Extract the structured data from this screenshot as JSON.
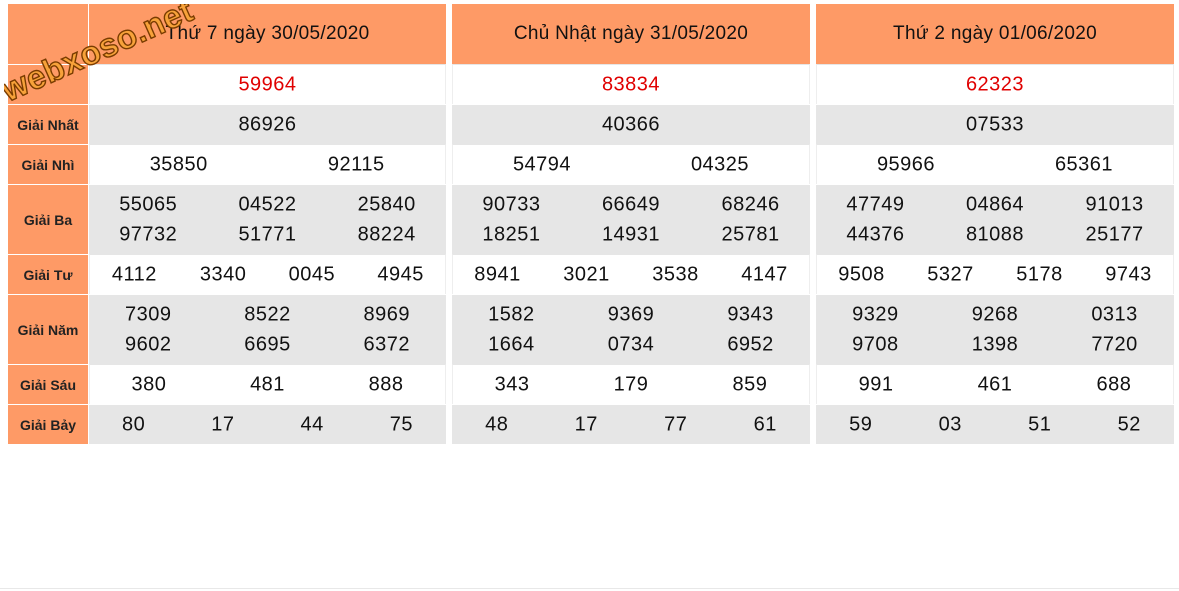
{
  "watermark": "webxoso.net",
  "labels": [
    "Giải Nhất",
    "Giải Nhì",
    "Giải Ba",
    "Giải Tư",
    "Giải Năm",
    "Giải Sáu",
    "Giải Bảy"
  ],
  "columns": [
    {
      "title": "Thứ 7 ngày 30/05/2020",
      "special": "59964",
      "first": "86926",
      "second": [
        "35850",
        "92115"
      ],
      "third": [
        "55065",
        "04522",
        "25840",
        "97732",
        "51771",
        "88224"
      ],
      "fourth": [
        "4112",
        "3340",
        "0045",
        "4945"
      ],
      "fifth": [
        "7309",
        "8522",
        "8969",
        "9602",
        "6695",
        "6372"
      ],
      "sixth": [
        "380",
        "481",
        "888"
      ],
      "seventh": [
        "80",
        "17",
        "44",
        "75"
      ]
    },
    {
      "title": "Chủ Nhật ngày 31/05/2020",
      "special": "83834",
      "first": "40366",
      "second": [
        "54794",
        "04325"
      ],
      "third": [
        "90733",
        "66649",
        "68246",
        "18251",
        "14931",
        "25781"
      ],
      "fourth": [
        "8941",
        "3021",
        "3538",
        "4147"
      ],
      "fifth": [
        "1582",
        "9369",
        "9343",
        "1664",
        "0734",
        "6952"
      ],
      "sixth": [
        "343",
        "179",
        "859"
      ],
      "seventh": [
        "48",
        "17",
        "77",
        "61"
      ]
    },
    {
      "title": "Thứ 2 ngày 01/06/2020",
      "special": "62323",
      "first": "07533",
      "second": [
        "95966",
        "65361"
      ],
      "third": [
        "47749",
        "04864",
        "91013",
        "44376",
        "81088",
        "25177"
      ],
      "fourth": [
        "9508",
        "5327",
        "5178",
        "9743"
      ],
      "fifth": [
        "9329",
        "9268",
        "0313",
        "9708",
        "1398",
        "7720"
      ],
      "sixth": [
        "991",
        "461",
        "688"
      ],
      "seventh": [
        "59",
        "03",
        "51",
        "52"
      ]
    }
  ]
}
